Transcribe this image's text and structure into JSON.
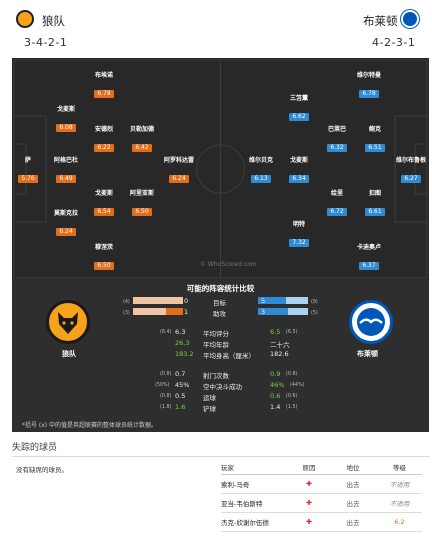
{
  "header": {
    "home": {
      "name": "狼队",
      "formation": "3-4-2-1",
      "color": "#f6a21b"
    },
    "away": {
      "name": "布莱顿",
      "formation": "4-2-3-1",
      "color": "#0057b8"
    }
  },
  "pitch": {
    "watermark": "© WhoScored.com",
    "home_players": [
      {
        "name": "萨",
        "rating": "5.76"
      },
      {
        "name": "戈麦斯",
        "rating": "6.08"
      },
      {
        "name": "阿格巴杜",
        "rating": "6.49"
      },
      {
        "name": "莫斯克拉",
        "rating": "6.24"
      },
      {
        "name": "布埃诺",
        "rating": "6.78"
      },
      {
        "name": "安德烈",
        "rating": "6.22"
      },
      {
        "name": "戈麦斯",
        "rating": "6.54"
      },
      {
        "name": "穆涅茨",
        "rating": "6.50"
      },
      {
        "name": "贝勒加德",
        "rating": "6.42"
      },
      {
        "name": "阿里亚斯",
        "rating": "6.50"
      },
      {
        "name": "阿罗科达雷",
        "rating": "6.24"
      }
    ],
    "away_players": [
      {
        "name": "维尔布鲁根",
        "rating": "6.27"
      },
      {
        "name": "维尔特曼",
        "rating": "6.78"
      },
      {
        "name": "鲍克",
        "rating": "6.51"
      },
      {
        "name": "扣图",
        "rating": "6.61"
      },
      {
        "name": "卡迪奥卢",
        "rating": "6.37"
      },
      {
        "name": "巴莱巴",
        "rating": "6.32"
      },
      {
        "name": "绘里",
        "rating": "6.72"
      },
      {
        "name": "三笘薫",
        "rating": "6.62"
      },
      {
        "name": "戈麦斯",
        "rating": "6.34"
      },
      {
        "name": "明特",
        "rating": "7.32"
      },
      {
        "name": "维尔贝克",
        "rating": "6.13"
      }
    ]
  },
  "compare": {
    "title": "可能的阵容统计比较",
    "home_name": "狼队",
    "away_name": "布莱顿",
    "goals": {
      "label": "目标",
      "home": "0",
      "home_small": "(4)",
      "away": "5",
      "away_small": "(9)"
    },
    "assists": {
      "label": "助攻",
      "home": "1",
      "home_small": "(3)",
      "away": "3",
      "away_small": "(5)"
    },
    "stats": [
      {
        "label": "平均评分",
        "home_small": "(6.4)",
        "home": "6.3",
        "away": "6.5",
        "away_small": "(6.5)"
      },
      {
        "label": "平均年龄",
        "home_small": "",
        "home": "26.3",
        "away": "二十六",
        "away_small": ""
      },
      {
        "label": "平均身高（厘米）",
        "home_small": "",
        "home": "183.2",
        "away": "182.6",
        "away_small": ""
      },
      {
        "label": "射门次数",
        "home_small": "(0.8)",
        "home": "0.7",
        "away": "0.9",
        "away_small": "(0.8)"
      },
      {
        "label": "空中决斗成功",
        "home_small": "(50%)",
        "home": "45%",
        "away": "46%",
        "away_small": "(44%)"
      },
      {
        "label": "运球",
        "home_small": "(0.8)",
        "home": "0.5",
        "away": "0.6",
        "away_small": "(0.6)"
      },
      {
        "label": "铲球",
        "home_small": "(1.8)",
        "home": "1.6",
        "away": "1.4",
        "away_small": "(1.5)"
      }
    ],
    "footnote": "*括号 (x) 中的值是英超联赛的整体球员统计数据。"
  },
  "missing": {
    "title": "失踪的球员",
    "home_none": "没有缺席的球员。",
    "headers": [
      "玩家",
      "原因",
      "地位",
      "等级"
    ],
    "rows": [
      {
        "player": "索利-马奇",
        "status": "出去",
        "rating": "不适用"
      },
      {
        "player": "亚当-韦伯斯特",
        "status": "出去",
        "rating": "不适用"
      },
      {
        "player": "杰克-欣谢尔伍德",
        "status": "出去",
        "rating": "6.2"
      }
    ]
  }
}
